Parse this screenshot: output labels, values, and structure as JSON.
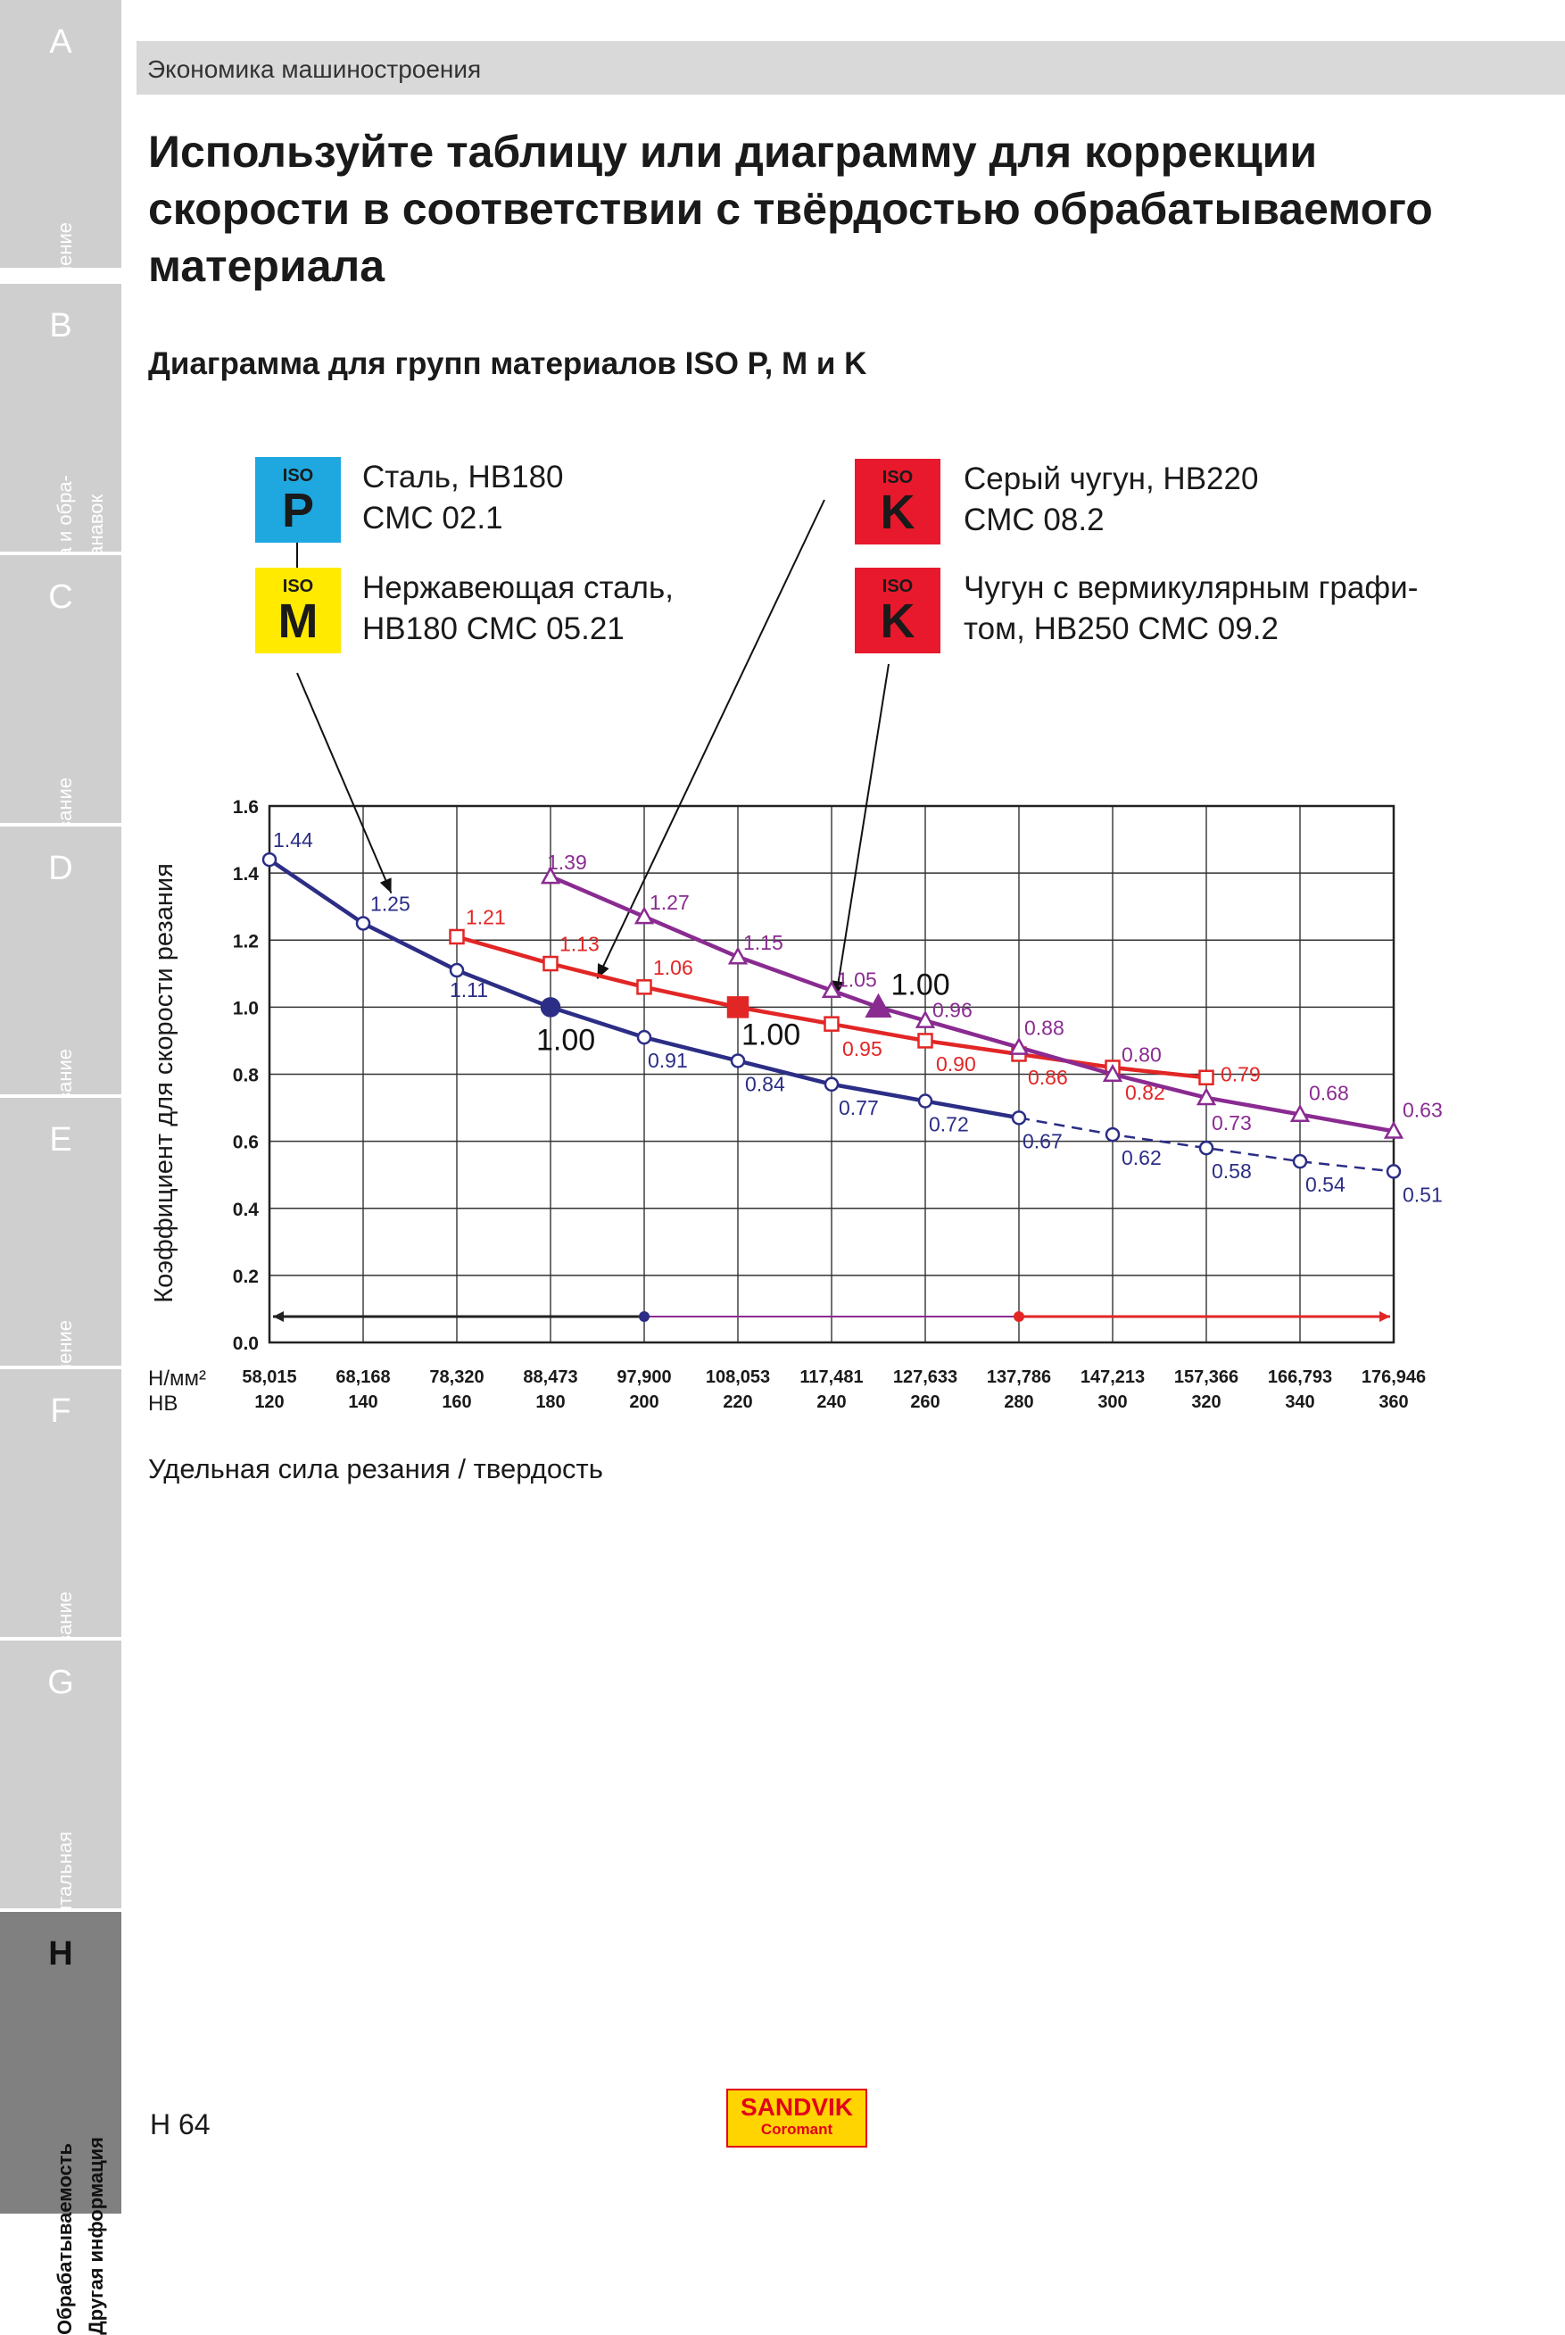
{
  "header": {
    "section": "Экономика машиностроения"
  },
  "title": "Используйте таблицу или диаграмму для коррекции скорости в соответствии с твёрдостью обрабатываемого материала",
  "subtitle": "Диаграмма для групп материалов ISO P, M и K",
  "sidebar": {
    "tabs": [
      {
        "letter": "A",
        "label": "Точение",
        "active": false
      },
      {
        "letter": "B",
        "label": "Отрезка и обра-\nботка канавок",
        "active": false
      },
      {
        "letter": "C",
        "label": "Резьбонарезание",
        "active": false
      },
      {
        "letter": "D",
        "label": "Фрезерование",
        "active": false
      },
      {
        "letter": "E",
        "label": "Сверление",
        "active": false
      },
      {
        "letter": "F",
        "label": "Растачивание",
        "active": false
      },
      {
        "letter": "G",
        "label": "Инструментальная\nоснастка",
        "active": false
      },
      {
        "letter": "H",
        "label": "Обрабатываемость\nДругая информация",
        "active": true
      }
    ]
  },
  "legend": [
    {
      "iso": "ISO",
      "letter": "P",
      "color": "#1fa8e0",
      "text": "Сталь, HB180\nCMC 02.1"
    },
    {
      "iso": "ISO",
      "letter": "M",
      "color": "#ffea00",
      "text": "Нержавеющая сталь,\nHB180 CMC 05.21"
    },
    {
      "iso": "ISO",
      "letter": "K",
      "color": "#e8192c",
      "text": "Серый чугун, HB220\nCMC 08.2"
    },
    {
      "iso": "ISO",
      "letter": "K",
      "color": "#e8192c",
      "text": "Чугун с вермикулярным графи-\nтом, HB250 CMC 09.2"
    }
  ],
  "chart_data": {
    "type": "line",
    "ylabel": "Коэффициент для скорости резания",
    "xlabel_units": [
      "Н/мм²",
      "HB"
    ],
    "x_hb": [
      120,
      140,
      160,
      180,
      200,
      220,
      240,
      260,
      280,
      300,
      320,
      340,
      360
    ],
    "x_labels_n": [
      "58,015",
      "68,168",
      "78,320",
      "88,473",
      "97,900",
      "108,053",
      "117,481",
      "127,633",
      "137,786",
      "147,213",
      "157,366",
      "166,793",
      "176,946"
    ],
    "x_labels_hb": [
      "120",
      "140",
      "160",
      "180",
      "200",
      "220",
      "240",
      "260",
      "280",
      "300",
      "320",
      "340",
      "360"
    ],
    "ylim": [
      0,
      1.6
    ],
    "yticks": [
      "0.0",
      "0.2",
      "0.4",
      "0.6",
      "0.8",
      "1.0",
      "1.2",
      "1.4",
      "1.6"
    ],
    "grid": true,
    "series": [
      {
        "marker": "circle",
        "color": "#2b2d86",
        "solid_until_hb": 280,
        "ref_hb": 180,
        "ref_label": "1.00",
        "x": [
          120,
          140,
          160,
          180,
          200,
          220,
          240,
          260,
          280,
          300,
          320,
          340,
          360
        ],
        "y": [
          1.44,
          1.25,
          1.11,
          1.0,
          0.91,
          0.84,
          0.77,
          0.72,
          0.67,
          0.62,
          0.58,
          0.54,
          0.51
        ],
        "labels": [
          "1.44",
          "1.25",
          "1.11",
          "",
          "0.91",
          "0.84",
          "0.77",
          "0.72",
          "0.67",
          "0.62",
          "0.58",
          "0.54",
          "0.51"
        ]
      },
      {
        "marker": "square",
        "color": "#e22626",
        "ref_hb": 220,
        "ref_label": "1.00",
        "x": [
          160,
          180,
          200,
          220,
          240,
          260,
          280,
          300,
          320
        ],
        "y": [
          1.21,
          1.13,
          1.06,
          1.0,
          0.95,
          0.9,
          0.86,
          0.82,
          0.79
        ],
        "labels": [
          "1.21",
          "1.13",
          "1.06",
          "",
          "0.95",
          "0.90",
          "0.86",
          "0.82",
          "0.79"
        ]
      },
      {
        "marker": "triangle",
        "color": "#8a2b91",
        "ref_hb": 250,
        "ref_label": "1.00",
        "x": [
          180,
          200,
          220,
          240,
          250,
          260,
          280,
          300,
          320,
          340,
          360
        ],
        "y": [
          1.39,
          1.27,
          1.15,
          1.05,
          1.0,
          0.96,
          0.88,
          0.8,
          0.73,
          0.68,
          0.63
        ],
        "labels": [
          "1.39",
          "1.27",
          "1.15",
          "1.05",
          "",
          "0.96",
          "0.88",
          "0.80",
          "0.73",
          "0.68",
          "0.63"
        ]
      }
    ],
    "range_arrows": [
      {
        "color": "#222222",
        "from_hb": 120,
        "to_hb": 200
      },
      {
        "color": "#8a2b91",
        "from_hb": 200,
        "to_hb": 280
      },
      {
        "color": "#e22626",
        "from_hb": 280,
        "to_hb": 360
      }
    ]
  },
  "footer": {
    "axis_caption": "Удельная сила резания / твердость",
    "page_number": "H 64",
    "logo_line1": "SANDVIK",
    "logo_line2": "Coromant"
  }
}
